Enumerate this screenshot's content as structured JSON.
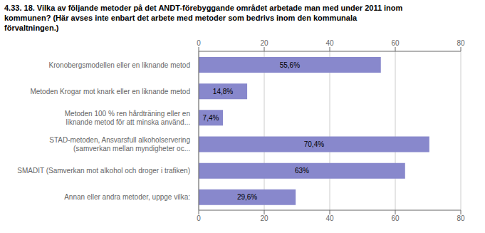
{
  "chart_data": {
    "type": "bar",
    "orientation": "horizontal",
    "title": "4.33. 18. Vilka av följande metoder på det ANDT-förebyggande området arbetade man med under 2011 inom\nkommunen? (Här avses inte enbart det arbete med metoder som bedrivs inom den kommunala\nförvaltningen.)",
    "categories": [
      "Kronobergsmodellen eller en liknande metod",
      "Metoden Krogar mot knark eller en liknande metod",
      "Metoden 100 % ren hårdträning eller en\nliknande metod för att minska använd...",
      "STAD-metoden, Ansvarsfull alkoholservering\n(samverkan mellan myndigheter oc...",
      "SMADIT (Samverkan mot alkohol och droger i trafiken)",
      "Annan eller andra metoder, uppge vilka:"
    ],
    "values": [
      55.6,
      14.8,
      7.4,
      70.4,
      63.0,
      29.6
    ],
    "value_labels": [
      "55,6%",
      "14,8%",
      "7,4%",
      "70,4%",
      "63%",
      "29,6%"
    ],
    "data_labels": true,
    "color": "#8888cc",
    "xlim": [
      0,
      80
    ],
    "xticks": [
      0,
      20,
      40,
      60,
      80
    ],
    "grid": true
  }
}
